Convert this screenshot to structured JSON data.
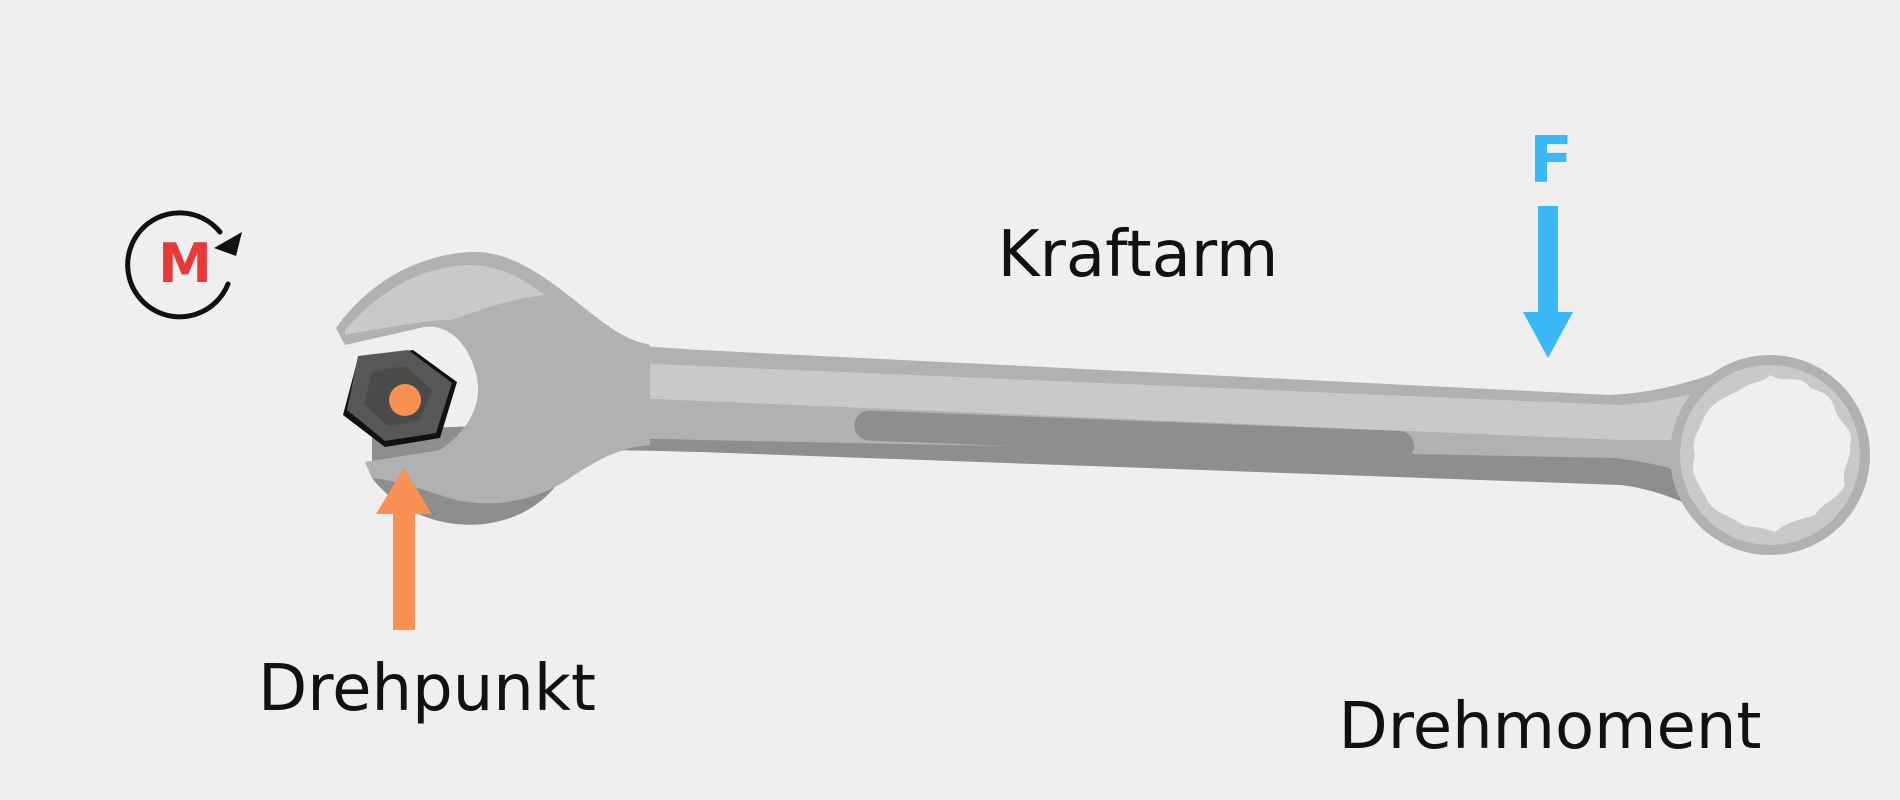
{
  "labels": {
    "moment_symbol": "M",
    "force_symbol": "F",
    "lever_arm": "Kraftarm",
    "pivot": "Drehpunkt",
    "torque": "Drehmoment"
  },
  "colors": {
    "background": "#efefef",
    "moment": "#e8383a",
    "force": "#3bb8f5",
    "pivot": "#f99155",
    "text": "#111111",
    "wrench_light": "#c9c9c9",
    "wrench_mid": "#b1b1b1",
    "wrench_dark": "#8e8e8e",
    "nut": "#575757"
  },
  "icons": {
    "moment": "rotation-arrow-icon",
    "force": "down-arrow-icon",
    "pivot": "up-arrow-icon"
  }
}
